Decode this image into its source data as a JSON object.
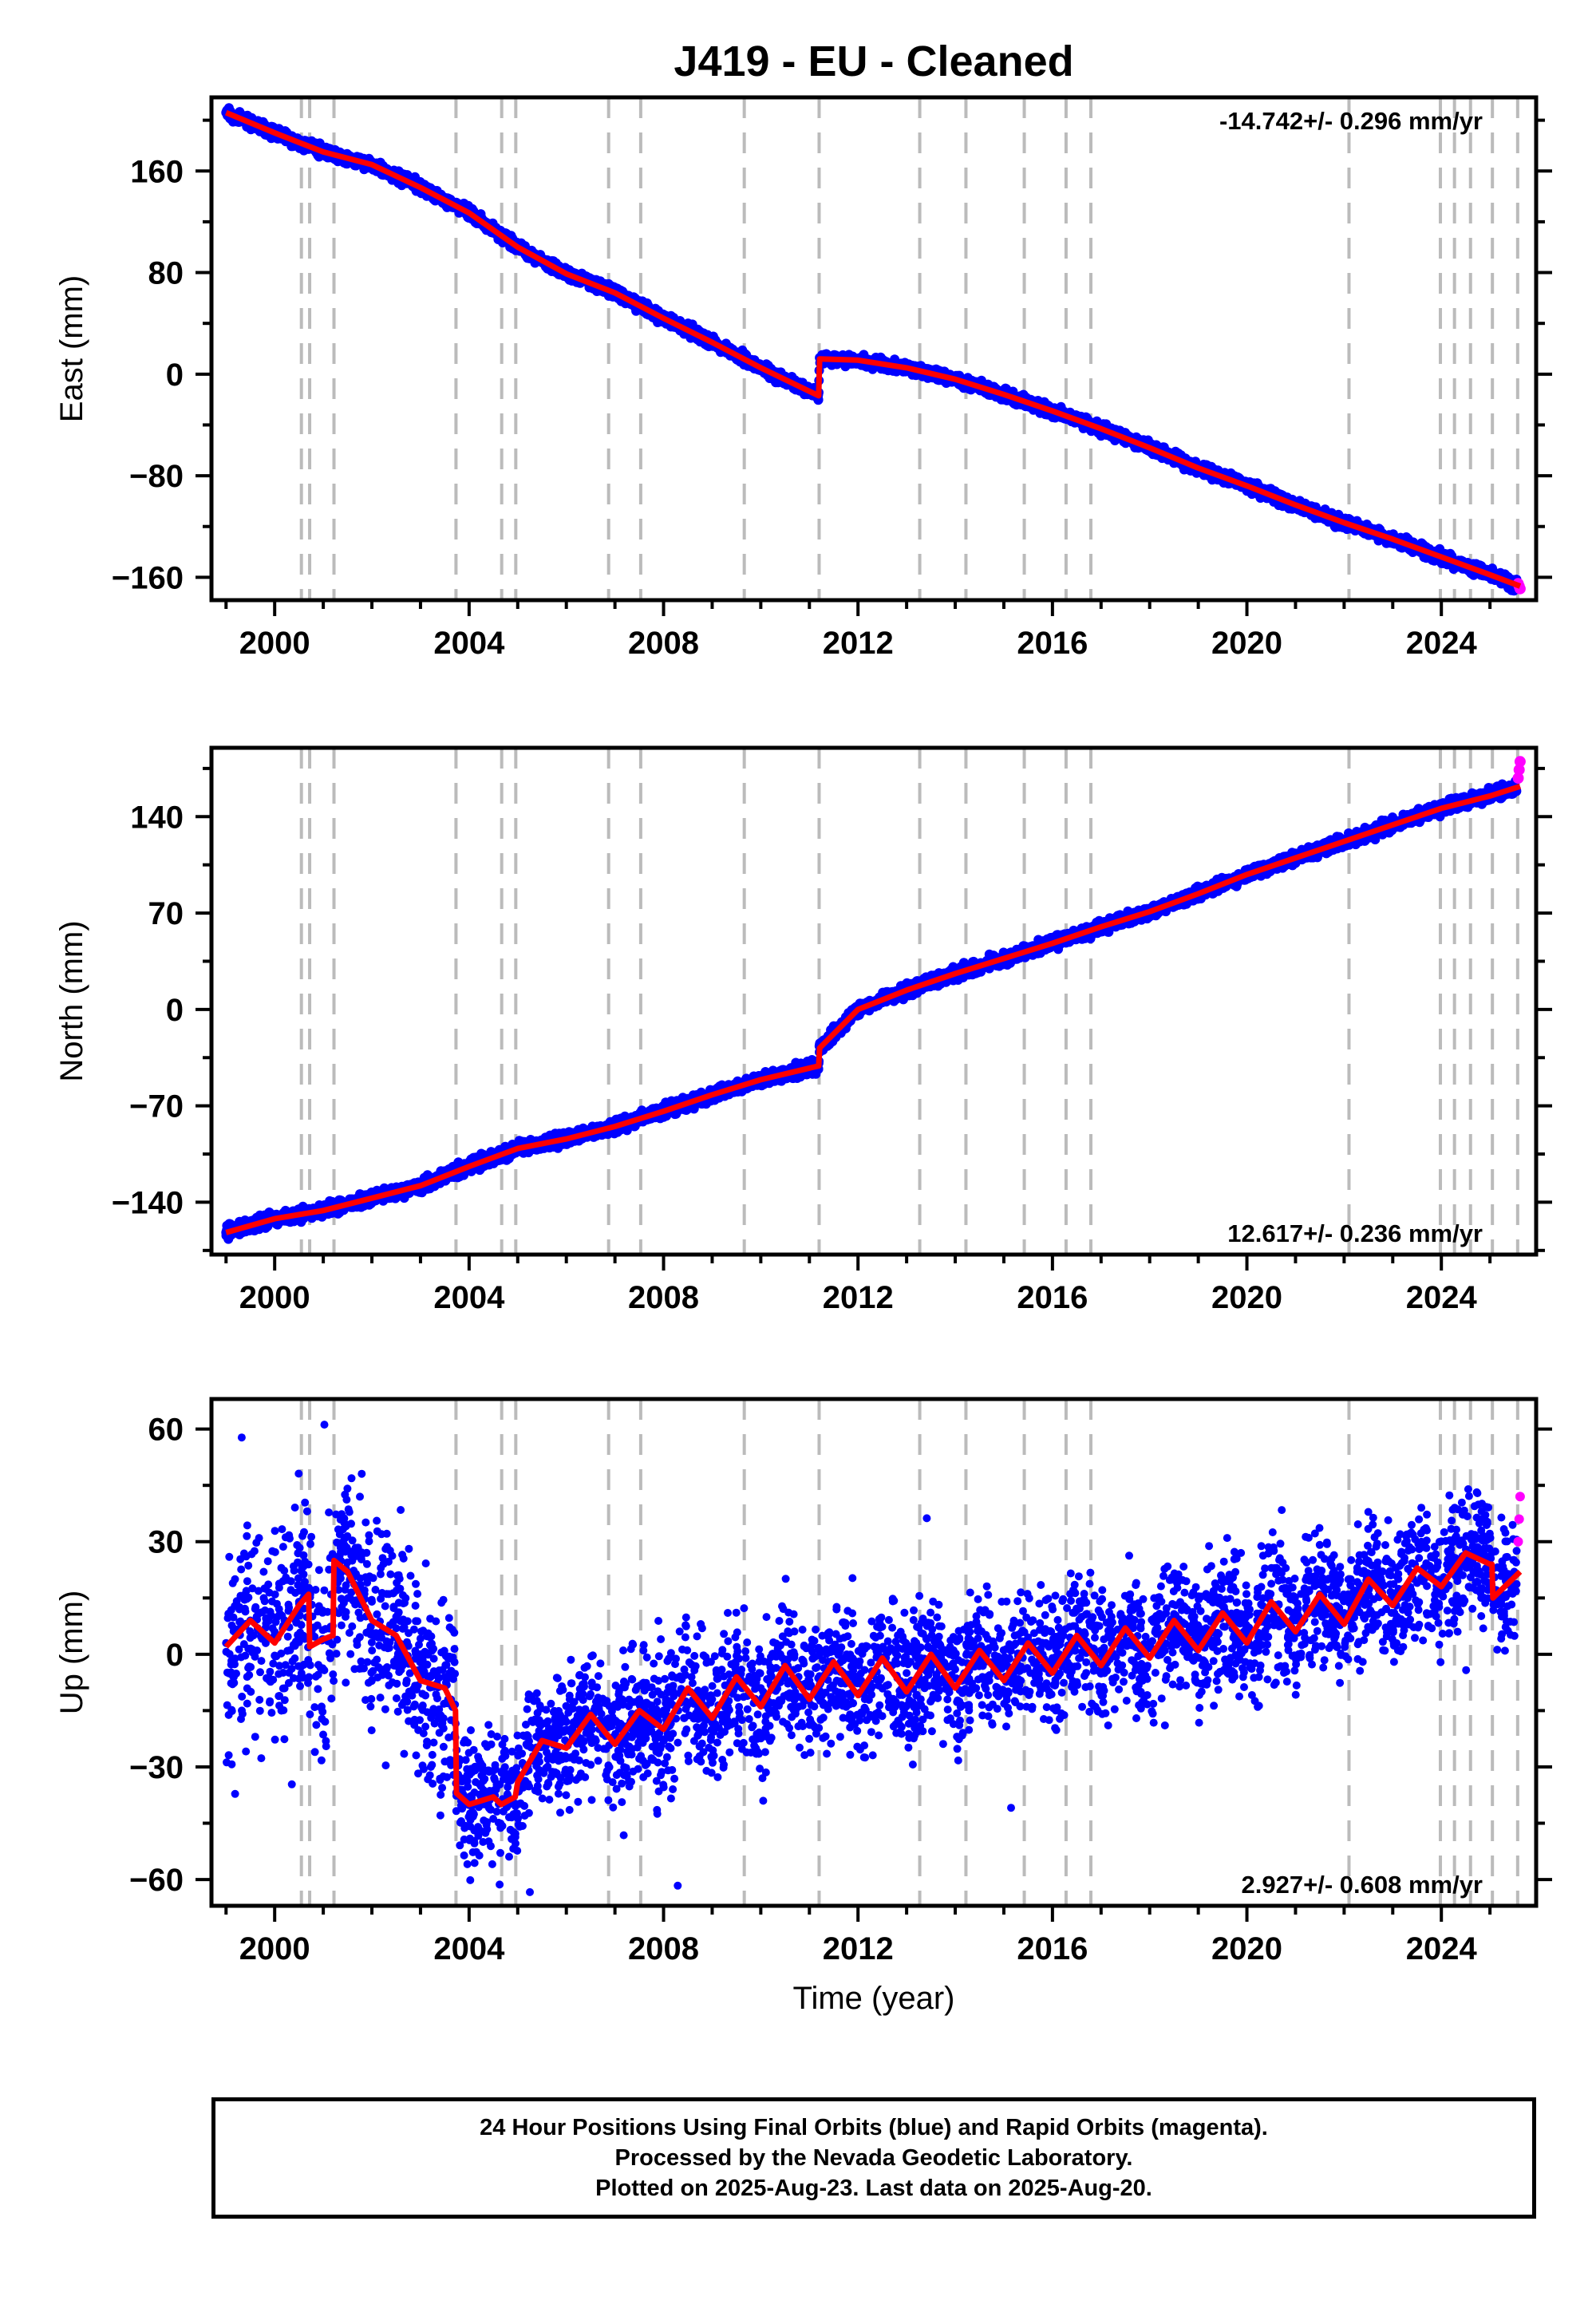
{
  "title": "J419  - EU - Cleaned",
  "colors": {
    "final_orbits": "#0000ff",
    "rapid_orbits": "#ff00ff",
    "model": "#ff0000",
    "event_lines": "#bbbbbb",
    "frame": "#000000"
  },
  "xaxis": {
    "label": "Time (year)",
    "range": [
      1998.7,
      2025.95
    ],
    "ticks": [
      "2000",
      "2004",
      "2008",
      "2012",
      "2016",
      "2020",
      "2024"
    ]
  },
  "event_years": [
    2000.55,
    2000.72,
    2001.22,
    2003.73,
    2004.67,
    2004.96,
    2006.87,
    2007.53,
    2009.66,
    2011.2,
    2013.27,
    2014.22,
    2015.42,
    2016.28,
    2016.79,
    2022.1,
    2023.98,
    2024.27,
    2024.6,
    2025.05,
    2025.57
  ],
  "chart_data": [
    {
      "type": "scatter",
      "component": "east",
      "ylabel": "East (mm)",
      "ylim": [
        -178,
        218
      ],
      "yticks": [
        "160",
        "80",
        "0",
        "−80",
        "−160"
      ],
      "rate_label": "-14.742+/- 0.296 mm/yr",
      "rate_position": "top-right",
      "series": [
        {
          "legend": "Final Orbits (blue)",
          "x": [
            1999.0,
            1999.5,
            2000.0,
            2000.5,
            2001.0,
            2001.5,
            2002.0,
            2002.5,
            2003.0,
            2003.5,
            2004.0,
            2004.5,
            2005.0,
            2005.5,
            2006.0,
            2006.5,
            2007.0,
            2007.5,
            2008.0,
            2008.5,
            2009.0,
            2009.5,
            2010.0,
            2010.5,
            2011.0,
            2011.15,
            2011.25,
            2011.5,
            2012.0,
            2012.5,
            2013.0,
            2013.5,
            2014.0,
            2014.5,
            2015.0,
            2015.5,
            2016.0,
            2016.5,
            2017.0,
            2017.5,
            2018.0,
            2018.5,
            2019.0,
            2019.5,
            2020.0,
            2020.5,
            2021.0,
            2021.5,
            2022.0,
            2022.5,
            2023.0,
            2023.5,
            2024.0,
            2024.5,
            2025.0,
            2025.5
          ],
          "y": [
            206,
            199,
            190,
            182,
            175,
            172,
            165,
            156,
            147,
            138,
            127,
            114,
            100,
            88,
            79,
            71,
            64,
            53,
            44,
            34,
            25,
            15,
            5,
            -5,
            -13,
            -18,
            11,
            14,
            11,
            8,
            5,
            1,
            -4,
            -9,
            -16,
            -24,
            -29,
            -35,
            -43,
            -51,
            -58,
            -66,
            -74,
            -81,
            -88,
            -96,
            -103,
            -110,
            -117,
            -124,
            -130,
            -138,
            -144,
            -151,
            -158,
            -162
          ]
        },
        {
          "legend": "Rapid Orbits (magenta)",
          "x": [
            2025.58,
            2025.6,
            2025.62
          ],
          "y": [
            -165,
            -167,
            -169
          ]
        }
      ],
      "model": {
        "x": [
          1999.0,
          2000.0,
          2001.0,
          2002.0,
          2003.0,
          2004.0,
          2005.0,
          2006.0,
          2007.0,
          2008.0,
          2009.0,
          2010.0,
          2011.19,
          2011.21,
          2012.0,
          2013.0,
          2014.0,
          2015.0,
          2016.0,
          2017.0,
          2018.0,
          2019.0,
          2020.0,
          2021.0,
          2022.0,
          2023.0,
          2024.0,
          2025.0,
          2025.62
        ],
        "y": [
          206,
          190,
          175,
          165,
          147,
          127,
          100,
          79,
          64,
          44,
          25,
          5,
          -17,
          12,
          11,
          5,
          -4,
          -16,
          -29,
          -43,
          -58,
          -74,
          -88,
          -103,
          -117,
          -130,
          -144,
          -158,
          -167
        ]
      }
    },
    {
      "type": "scatter",
      "component": "north",
      "ylabel": "North (mm)",
      "ylim": [
        -178,
        190
      ],
      "yticks": [
        "140",
        "70",
        "0",
        "−70",
        "−140"
      ],
      "rate_label": "12.617+/- 0.236 mm/yr",
      "rate_position": "bottom-right",
      "series": [
        {
          "legend": "Final Orbits (blue)",
          "x": [
            1999.0,
            1999.5,
            2000.0,
            2000.5,
            2001.0,
            2001.5,
            2002.0,
            2002.5,
            2003.0,
            2003.5,
            2004.0,
            2004.5,
            2005.0,
            2005.5,
            2006.0,
            2006.5,
            2007.0,
            2007.5,
            2008.0,
            2008.5,
            2009.0,
            2009.5,
            2010.0,
            2010.5,
            2011.0,
            2011.15,
            2011.25,
            2011.5,
            2012.0,
            2012.5,
            2013.0,
            2013.5,
            2014.0,
            2014.5,
            2015.0,
            2015.5,
            2016.0,
            2016.5,
            2017.0,
            2017.5,
            2018.0,
            2018.5,
            2019.0,
            2019.5,
            2020.0,
            2020.5,
            2021.0,
            2021.5,
            2022.0,
            2022.5,
            2023.0,
            2023.5,
            2024.0,
            2024.5,
            2025.0,
            2025.5
          ],
          "y": [
            -162,
            -158,
            -152,
            -147,
            -146,
            -142,
            -137,
            -132,
            -128,
            -122,
            -114,
            -107,
            -101,
            -97,
            -94,
            -90,
            -85,
            -80,
            -74,
            -68,
            -62,
            -56,
            -51,
            -46,
            -42,
            -40,
            -25,
            -12,
            0,
            8,
            14,
            20,
            26,
            31,
            37,
            42,
            48,
            54,
            60,
            65,
            71,
            77,
            84,
            91,
            98,
            104,
            110,
            116,
            122,
            128,
            134,
            140,
            146,
            151,
            155,
            160
          ]
        },
        {
          "legend": "Rapid Orbits (magenta)",
          "x": [
            2025.58,
            2025.6,
            2025.62
          ],
          "y": [
            168,
            174,
            180
          ]
        }
      ],
      "model": {
        "x": [
          1999.0,
          2000.0,
          2001.0,
          2002.0,
          2003.0,
          2004.0,
          2005.0,
          2006.0,
          2007.0,
          2008.0,
          2009.0,
          2010.0,
          2011.19,
          2011.21,
          2012.0,
          2013.0,
          2014.0,
          2015.0,
          2016.0,
          2017.0,
          2018.0,
          2019.0,
          2020.0,
          2021.0,
          2022.0,
          2023.0,
          2024.0,
          2025.0,
          2025.62
        ],
        "y": [
          -162,
          -152,
          -146,
          -137,
          -128,
          -114,
          -101,
          -94,
          -85,
          -74,
          -62,
          -51,
          -41,
          -28,
          0,
          14,
          26,
          37,
          48,
          60,
          71,
          84,
          98,
          110,
          122,
          134,
          146,
          155,
          162
        ]
      }
    },
    {
      "type": "scatter",
      "component": "up",
      "ylabel": "Up (mm)",
      "ylim": [
        -67,
        68
      ],
      "yticks": [
        "60",
        "30",
        "0",
        "−30",
        "−60"
      ],
      "rate_label": "2.927+/- 0.608 mm/yr",
      "rate_position": "bottom-right",
      "series": [
        {
          "legend": "Final Orbits (blue)",
          "x": [
            1999.0,
            1999.5,
            2000.0,
            2000.5,
            2001.0,
            2001.5,
            2002.0,
            2002.5,
            2003.0,
            2003.5,
            2003.8,
            2004.0,
            2004.5,
            2005.0,
            2005.5,
            2006.0,
            2006.5,
            2007.0,
            2007.5,
            2008.0,
            2008.5,
            2009.0,
            2009.5,
            2010.0,
            2010.5,
            2011.0,
            2011.5,
            2012.0,
            2012.5,
            2013.0,
            2013.5,
            2014.0,
            2014.5,
            2015.0,
            2015.5,
            2016.0,
            2016.5,
            2017.0,
            2017.5,
            2018.0,
            2018.5,
            2019.0,
            2019.5,
            2020.0,
            2020.5,
            2021.0,
            2021.5,
            2022.0,
            2022.5,
            2023.0,
            2023.5,
            2024.0,
            2024.5,
            2025.0,
            2025.5
          ],
          "y": [
            3,
            9,
            6,
            14,
            4,
            22,
            14,
            10,
            0,
            -6,
            -36,
            -38,
            -37,
            -32,
            -24,
            -18,
            -16,
            -18,
            -12,
            -15,
            -10,
            -12,
            -7,
            -9,
            -4,
            -7,
            -3,
            -6,
            -1,
            -5,
            -1,
            -4,
            0,
            -2,
            2,
            -1,
            4,
            1,
            6,
            3,
            8,
            5,
            10,
            7,
            12,
            9,
            14,
            11,
            17,
            15,
            19,
            18,
            24,
            18,
            22
          ]
        },
        {
          "legend": "Rapid Orbits (magenta)",
          "x": [
            2025.58,
            2025.6,
            2025.62
          ],
          "y": [
            30,
            36,
            42
          ]
        }
      ],
      "model": {
        "x": [
          1999.0,
          1999.5,
          2000.0,
          2000.5,
          2000.7,
          2000.72,
          2001.0,
          2001.2,
          2001.22,
          2001.5,
          2002.0,
          2002.5,
          2003.0,
          2003.5,
          2003.72,
          2003.74,
          2004.0,
          2004.5,
          2004.66,
          2004.95,
          2005.0,
          2005.5,
          2006.0,
          2006.5,
          2007.0,
          2007.5,
          2008.0,
          2008.5,
          2009.0,
          2009.5,
          2010.0,
          2010.5,
          2011.0,
          2011.5,
          2012.0,
          2012.5,
          2013.0,
          2013.5,
          2014.0,
          2014.5,
          2015.0,
          2015.5,
          2016.0,
          2016.5,
          2017.0,
          2017.5,
          2018.0,
          2018.5,
          2019.0,
          2019.5,
          2020.0,
          2020.5,
          2021.0,
          2021.5,
          2022.0,
          2022.5,
          2023.0,
          2023.5,
          2024.0,
          2024.5,
          2025.0,
          2025.04,
          2025.06,
          2025.62
        ],
        "y": [
          2,
          9,
          3,
          13,
          16,
          2,
          4,
          5,
          25,
          22,
          9,
          5,
          -7,
          -9,
          -15,
          -37,
          -40,
          -38,
          -40,
          -38,
          -34,
          -23,
          -25,
          -16,
          -24,
          -15,
          -20,
          -9,
          -17,
          -6,
          -14,
          -3,
          -12,
          -2,
          -11,
          -1,
          -10,
          0,
          -9,
          1,
          -7,
          3,
          -5,
          5,
          -3,
          7,
          -1,
          9,
          1,
          11,
          3,
          14,
          6,
          16,
          8,
          20,
          13,
          23,
          18,
          27,
          24,
          24,
          15,
          22
        ]
      }
    }
  ],
  "caption": {
    "line1": "24 Hour Positions Using Final Orbits (blue) and Rapid Orbits (magenta).",
    "line2": "Processed by the Nevada Geodetic Laboratory.",
    "line3": "Plotted on 2025-Aug-23. Last data on 2025-Aug-20."
  }
}
